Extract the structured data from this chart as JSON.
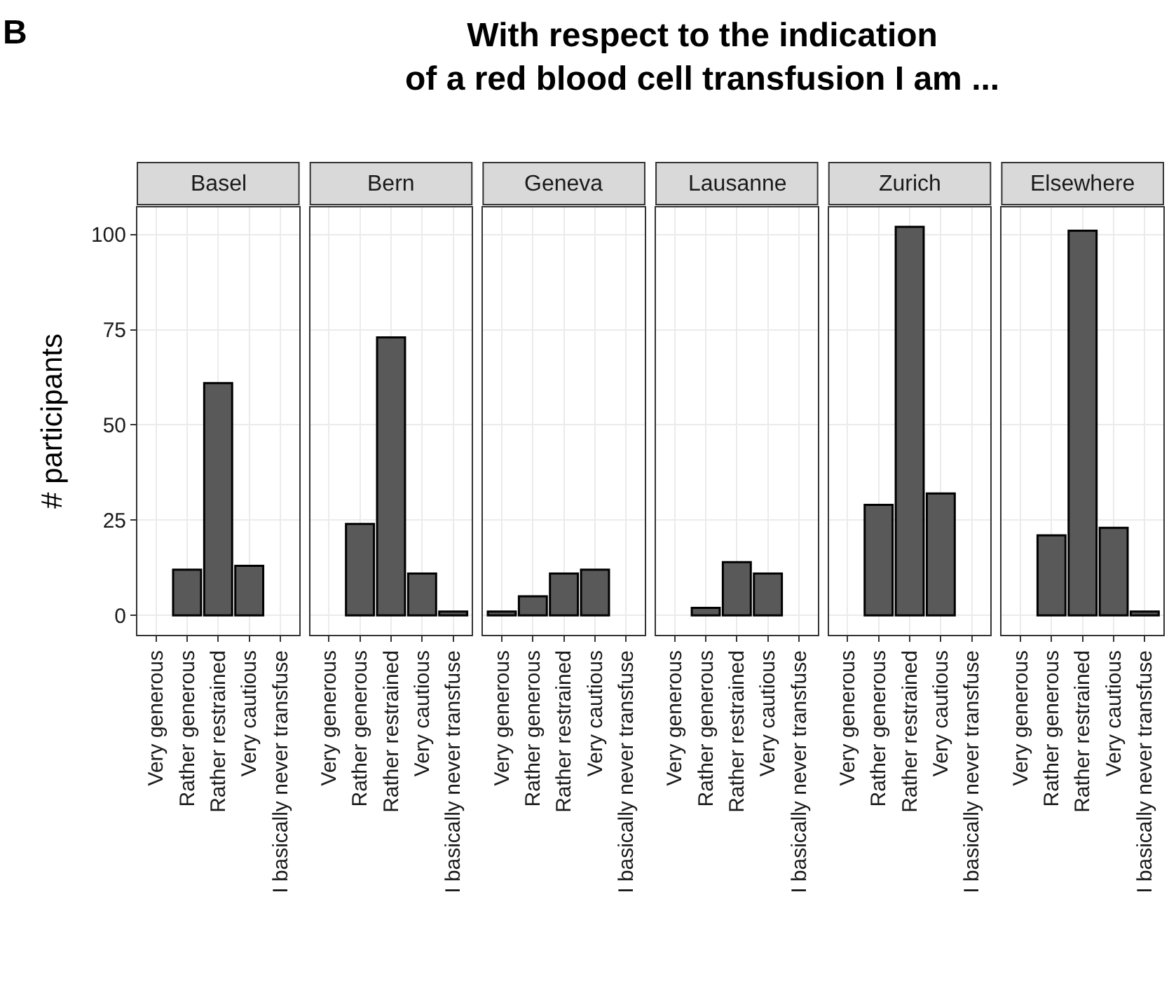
{
  "chart_data": [
    {
      "type": "bar",
      "title": "Basel",
      "ylabel": "# participants",
      "annotations": [
        "B",
        "With respect to the indication\nof a red blood cell transfusion I am ..."
      ],
      "categories": [
        "Very generous",
        "Rather generous",
        "Rather restrained",
        "Very cautious",
        "I basically never transfuse"
      ],
      "values": [
        null,
        12,
        61,
        13,
        null
      ],
      "color": "#595959",
      "ylim": [
        -5.1,
        107.1
      ],
      "yticks": [
        0,
        25,
        50,
        75,
        100
      ],
      "grid": true
    },
    {
      "type": "bar",
      "title": "Bern",
      "categories": [
        "Very generous",
        "Rather generous",
        "Rather restrained",
        "Very cautious",
        "I basically never transfuse"
      ],
      "values": [
        null,
        24,
        73,
        11,
        1
      ],
      "color": "#595959",
      "ylim": [
        -5.1,
        107.1
      ],
      "yticks": [
        0,
        25,
        50,
        75,
        100
      ],
      "grid": true,
      "tick_labels": "x"
    },
    {
      "type": "bar",
      "title": "Geneva",
      "categories": [
        "Very generous",
        "Rather generous",
        "Rather restrained",
        "Very cautious",
        "I basically never transfuse"
      ],
      "values": [
        1,
        5,
        11,
        12,
        null
      ],
      "color": "#595959",
      "ylim": [
        -5.1,
        107.1
      ],
      "yticks": [
        0,
        25,
        50,
        75,
        100
      ],
      "grid": true,
      "tick_labels": "x"
    },
    {
      "type": "bar",
      "title": "Lausanne",
      "categories": [
        "Very generous",
        "Rather generous",
        "Rather restrained",
        "Very cautious",
        "I basically never transfuse"
      ],
      "values": [
        null,
        2,
        14,
        11,
        null
      ],
      "color": "#595959",
      "ylim": [
        -5.1,
        107.1
      ],
      "yticks": [
        0,
        25,
        50,
        75,
        100
      ],
      "grid": true,
      "tick_labels": "x"
    },
    {
      "type": "bar",
      "title": "Zurich",
      "categories": [
        "Very generous",
        "Rather generous",
        "Rather restrained",
        "Very cautious",
        "I basically never transfuse"
      ],
      "values": [
        null,
        29,
        102,
        32,
        null
      ],
      "color": "#595959",
      "ylim": [
        -5.1,
        107.1
      ],
      "yticks": [
        0,
        25,
        50,
        75,
        100
      ],
      "grid": true,
      "tick_labels": "x"
    },
    {
      "type": "bar",
      "title": "Elsewhere",
      "categories": [
        "Very generous",
        "Rather generous",
        "Rather restrained",
        "Very cautious",
        "I basically never transfuse"
      ],
      "values": [
        null,
        21,
        101,
        23,
        1
      ],
      "color": "#595959",
      "ylim": [
        -5.1,
        107.1
      ],
      "yticks": [
        0,
        25,
        50,
        75,
        100
      ],
      "grid": true,
      "tick_labels": "x"
    }
  ]
}
